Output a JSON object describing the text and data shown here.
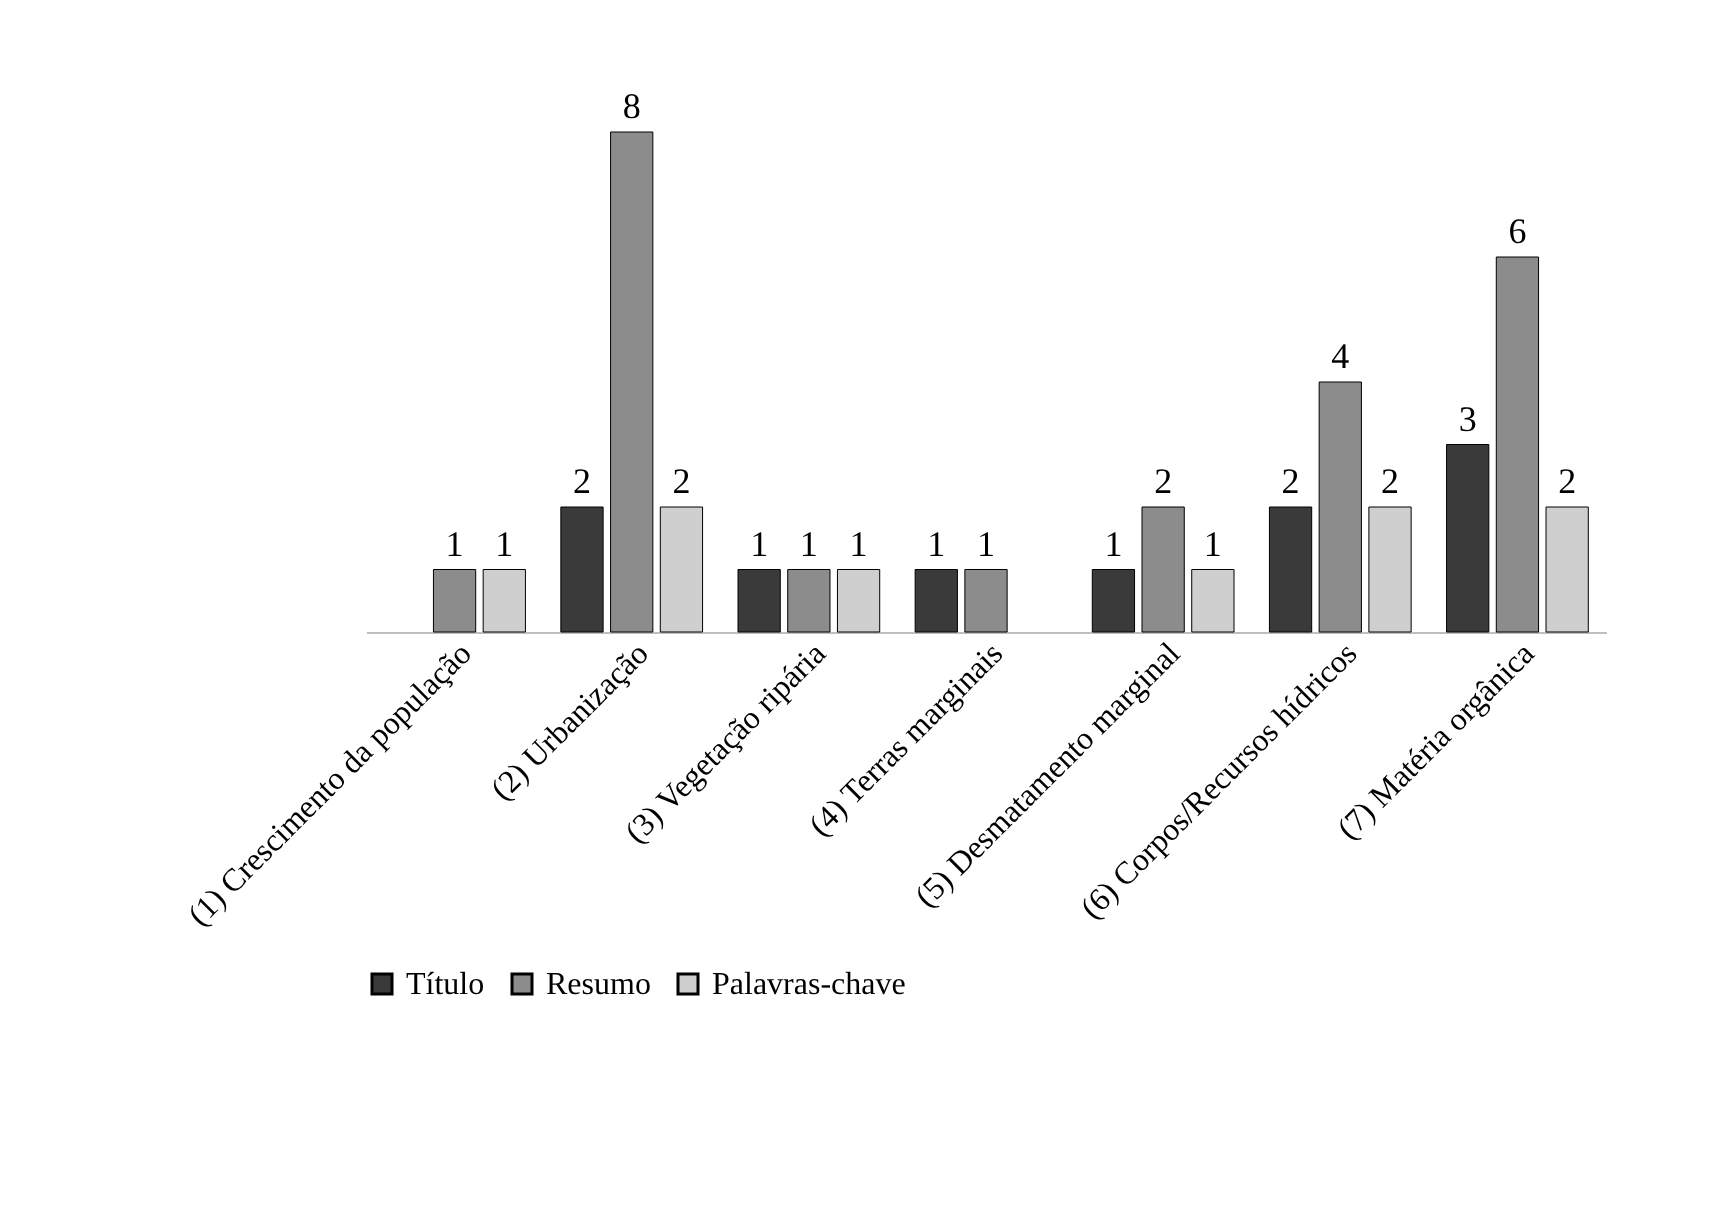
{
  "chart_data": {
    "type": "bar",
    "tick_labels": "x",
    "data_labels": true,
    "legend": "bottom",
    "categories": [
      "(1) Crescimento da população",
      "(2) Urbanização",
      "(3) Vegetação ripária",
      "(4) Terras marginais",
      "(5) Desmatamento marginal",
      "(6) Corpos/Recursos hídricos",
      "(7) Matéria orgânica"
    ],
    "series": [
      {
        "name": "Título",
        "color": "#3a3a3a",
        "values": [
          null,
          2,
          1,
          1,
          1,
          2,
          3
        ]
      },
      {
        "name": "Resumo",
        "color": "#8c8c8c",
        "values": [
          1,
          8,
          1,
          1,
          2,
          4,
          6
        ]
      },
      {
        "name": "Palavras-chave",
        "color": "#cfcfcf",
        "values": [
          1,
          2,
          1,
          null,
          1,
          2,
          2
        ]
      }
    ]
  }
}
